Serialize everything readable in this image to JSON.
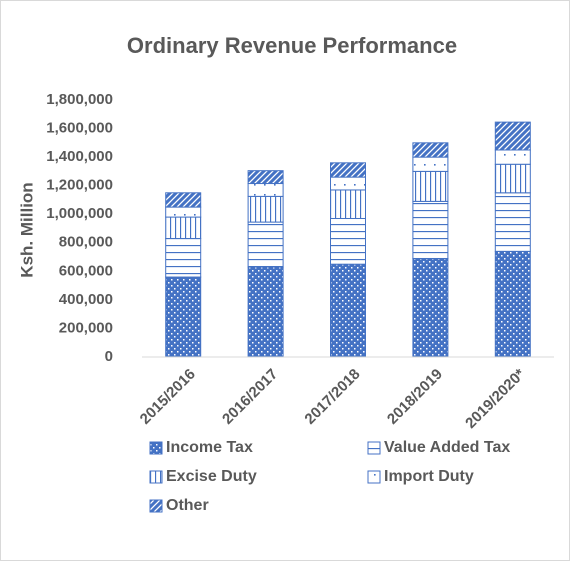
{
  "chart_data": {
    "type": "stacked_bar",
    "title": "Ordinary Revenue Performance",
    "y_label": "Ksh. Million",
    "categories": [
      "2015/2016",
      "2016/2017",
      "2017/2018",
      "2018/2019",
      "2019/2020*"
    ],
    "series": [
      {
        "name": "Income Tax",
        "color": "#4472c4",
        "pattern": "checker",
        "values": [
          560000,
          630000,
          650000,
          690000,
          740000
        ]
      },
      {
        "name": "Value Added Tax",
        "color": "#4472c4",
        "pattern": "horizontal",
        "values": [
          270000,
          315000,
          320000,
          400000,
          410000
        ]
      },
      {
        "name": "Excise Duty",
        "color": "#4472c4",
        "pattern": "vertical",
        "values": [
          150000,
          180000,
          200000,
          210000,
          200000
        ]
      },
      {
        "name": "Import Duty",
        "color": "#4472c4",
        "pattern": "dotted",
        "values": [
          70000,
          90000,
          90000,
          100000,
          100000
        ]
      },
      {
        "name": "Other",
        "color": "#4472c4",
        "pattern": "diagonal",
        "values": [
          100000,
          90000,
          100000,
          100000,
          195000
        ]
      }
    ],
    "ylim": [
      0,
      1800000
    ],
    "yticks": [
      0,
      {
        "value": 200000,
        "label": "200,000"
      },
      {
        "value": 400000,
        "label": "400,000"
      },
      {
        "value": 600000,
        "label": "600,000"
      },
      {
        "value": 800000,
        "label": "800,000"
      },
      {
        "value": 1000000,
        "label": "1,000,000"
      },
      {
        "value": 1200000,
        "label": "1,200,000"
      },
      {
        "value": 1400000,
        "label": "1,400,000"
      },
      {
        "value": 1600000,
        "label": "1,600,000"
      },
      {
        "value": 1800000,
        "label": "1,800,000"
      }
    ],
    "grid": false,
    "legend": "bottom"
  }
}
